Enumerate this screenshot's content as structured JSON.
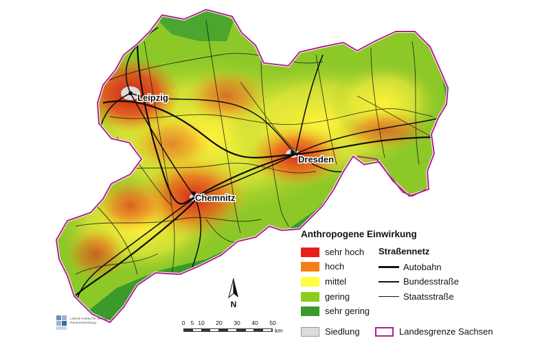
{
  "map": {
    "cities": [
      {
        "name": "Leipzig",
        "id": "leipzig"
      },
      {
        "name": "Dresden",
        "id": "dresden"
      },
      {
        "name": "Chemnitz",
        "id": "chemnitz"
      }
    ],
    "north_label": "N"
  },
  "legend": {
    "title": "Anthropogene Einwirkung",
    "classes": [
      {
        "label": "sehr hoch",
        "color": "#e8201c"
      },
      {
        "label": "hoch",
        "color": "#f57f17"
      },
      {
        "label": "mittel",
        "color": "#ffff3c"
      },
      {
        "label": "gering",
        "color": "#8ccc1c"
      },
      {
        "label": "sehr gering",
        "color": "#3a9a2a"
      }
    ],
    "settlement": {
      "label": "Siedlung",
      "color": "#dcdcdc"
    },
    "roads": {
      "title": "Straßennetz",
      "items": [
        {
          "label": "Autobahn"
        },
        {
          "label": "Bundesstraße"
        },
        {
          "label": "Staatsstraße"
        }
      ]
    },
    "border": {
      "label": "Landesgrenze Sachsen",
      "color": "#b0208c"
    }
  },
  "scale": {
    "ticks": [
      "0",
      "5",
      "10",
      "20",
      "30",
      "40",
      "50"
    ],
    "unit": "km"
  },
  "logo": {
    "text": "Leibniz-Institut für ökologische Raumentwicklung"
  }
}
